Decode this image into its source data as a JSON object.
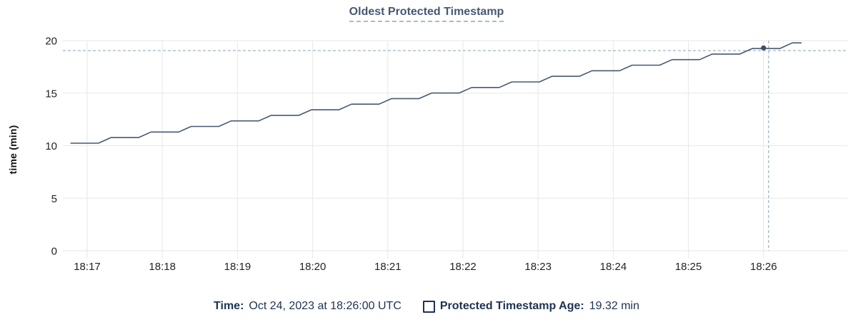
{
  "title": "Oldest Protected Timestamp",
  "colors": {
    "title": "#475872",
    "line": "#475872",
    "point": "#3e4f6b",
    "crosshair": "#a9bcc6",
    "grid": "#ececec",
    "tick_text": "#242424",
    "legend_text": "#1d3352"
  },
  "chart_data": {
    "type": "line",
    "title": "Oldest Protected Timestamp",
    "xlabel": "",
    "ylabel": "time (min)",
    "grid": true,
    "legend_position": "bottom",
    "x_tick_labels": [
      "18:17",
      "18:18",
      "18:19",
      "18:20",
      "18:21",
      "18:22",
      "18:23",
      "18:24",
      "18:25",
      "18:26"
    ],
    "x_tick_seconds": [
      0,
      60,
      120,
      180,
      240,
      300,
      360,
      420,
      480,
      540
    ],
    "x_domain_seconds": [
      -19,
      607
    ],
    "x_reference_time": "18:17:00",
    "y_ticks": [
      0,
      5,
      10,
      15,
      20
    ],
    "ylim": [
      0,
      20
    ],
    "series": [
      {
        "name": "Protected Timestamp Age",
        "points": [
          [
            -13,
            10.24
          ],
          [
            9,
            10.24
          ],
          [
            19,
            10.77
          ],
          [
            41,
            10.77
          ],
          [
            51,
            11.3
          ],
          [
            73,
            11.3
          ],
          [
            83,
            11.83
          ],
          [
            105,
            11.83
          ],
          [
            115,
            12.36
          ],
          [
            137,
            12.36
          ],
          [
            147,
            12.89
          ],
          [
            169,
            12.89
          ],
          [
            179,
            13.42
          ],
          [
            201,
            13.42
          ],
          [
            211,
            13.95
          ],
          [
            233,
            13.95
          ],
          [
            243,
            14.48
          ],
          [
            265,
            14.48
          ],
          [
            275,
            15.01
          ],
          [
            297,
            15.01
          ],
          [
            307,
            15.54
          ],
          [
            329,
            15.54
          ],
          [
            339,
            16.07
          ],
          [
            361,
            16.07
          ],
          [
            371,
            16.6
          ],
          [
            393,
            16.6
          ],
          [
            403,
            17.13
          ],
          [
            425,
            17.13
          ],
          [
            435,
            17.66
          ],
          [
            457,
            17.66
          ],
          [
            467,
            18.19
          ],
          [
            489,
            18.19
          ],
          [
            499,
            18.72
          ],
          [
            521,
            18.72
          ],
          [
            531,
            19.25
          ],
          [
            553,
            19.25
          ],
          [
            563,
            19.78
          ],
          [
            570,
            19.78
          ]
        ]
      }
    ],
    "crosshair": {
      "x_seconds": 544,
      "y_value": 19.05,
      "point_x_seconds": 540,
      "point_value": 19.3
    }
  },
  "legend": {
    "time_label": "Time:",
    "time_value": "Oct 24, 2023 at 18:26:00 UTC",
    "series_label": "Protected Timestamp Age:",
    "series_value": "19.32 min"
  }
}
